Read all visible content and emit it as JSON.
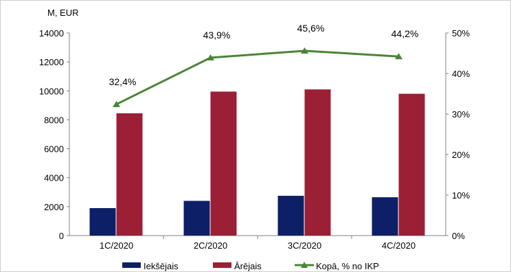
{
  "chart_data": {
    "type": "bar",
    "y_unit_label": "M, EUR",
    "categories": [
      "1C/2020",
      "2C/2020",
      "3C/2020",
      "4C/2020"
    ],
    "series": [
      {
        "name": "Iekšējais",
        "type": "bar",
        "axis": "left",
        "color": "#0d1f66",
        "values": [
          1900,
          2400,
          2750,
          2650
        ]
      },
      {
        "name": "Ārējais",
        "type": "bar",
        "axis": "left",
        "color": "#9b1f35",
        "values": [
          8450,
          9950,
          10100,
          9800
        ]
      },
      {
        "name": "Kopā, % no IKP",
        "type": "line",
        "axis": "right",
        "color": "#4a8535",
        "marker": "triangle",
        "values": [
          32.4,
          43.9,
          45.6,
          44.2
        ],
        "labels": [
          "32,4%",
          "43,9%",
          "45,6%",
          "44,2%"
        ]
      }
    ],
    "left_axis": {
      "min": 0,
      "max": 14000,
      "ticks": [
        "0",
        "2000",
        "4000",
        "6000",
        "8000",
        "10000",
        "12000",
        "14000"
      ]
    },
    "right_axis": {
      "min": 0,
      "max": 50,
      "ticks": [
        "0%",
        "10%",
        "20%",
        "30%",
        "40%",
        "50%"
      ]
    },
    "grid": false,
    "legend_position": "bottom"
  }
}
